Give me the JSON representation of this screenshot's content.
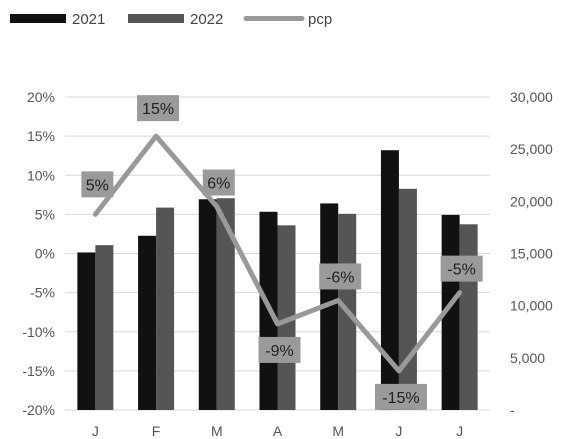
{
  "chart_data": {
    "type": "bar",
    "categories": [
      "J",
      "F",
      "M",
      "A",
      "M",
      "J",
      "J"
    ],
    "series": [
      {
        "name": "2021",
        "kind": "bar",
        "axis": "right",
        "color": "#111111",
        "values": [
          15100,
          16700,
          20200,
          19000,
          19800,
          24900,
          18700
        ]
      },
      {
        "name": "2022",
        "kind": "bar",
        "axis": "right",
        "color": "#555555",
        "values": [
          15800,
          19400,
          20300,
          17700,
          18800,
          21200,
          17800
        ]
      },
      {
        "name": "pcp",
        "kind": "line",
        "axis": "left",
        "color": "#999999",
        "values": [
          5,
          15,
          6,
          -9,
          -6,
          -15,
          -5
        ],
        "labels": [
          "5%",
          "15%",
          "6%",
          "-9%",
          "-6%",
          "-15%",
          "-5%"
        ]
      }
    ],
    "y_left": {
      "min": -20,
      "max": 20,
      "step": 5,
      "tick_labels": [
        "-20%",
        "-15%",
        "-10%",
        "-5%",
        "0%",
        "5%",
        "10%",
        "15%",
        "20%"
      ]
    },
    "y_right": {
      "min": 0,
      "max": 30000,
      "step": 5000,
      "tick_labels": [
        "-",
        "5,000",
        "10,000",
        "15,000",
        "20,000",
        "25,000",
        "30,000"
      ]
    },
    "grid": true,
    "legend": "top-left",
    "title": "",
    "xlabel": "",
    "ylabel": ""
  }
}
